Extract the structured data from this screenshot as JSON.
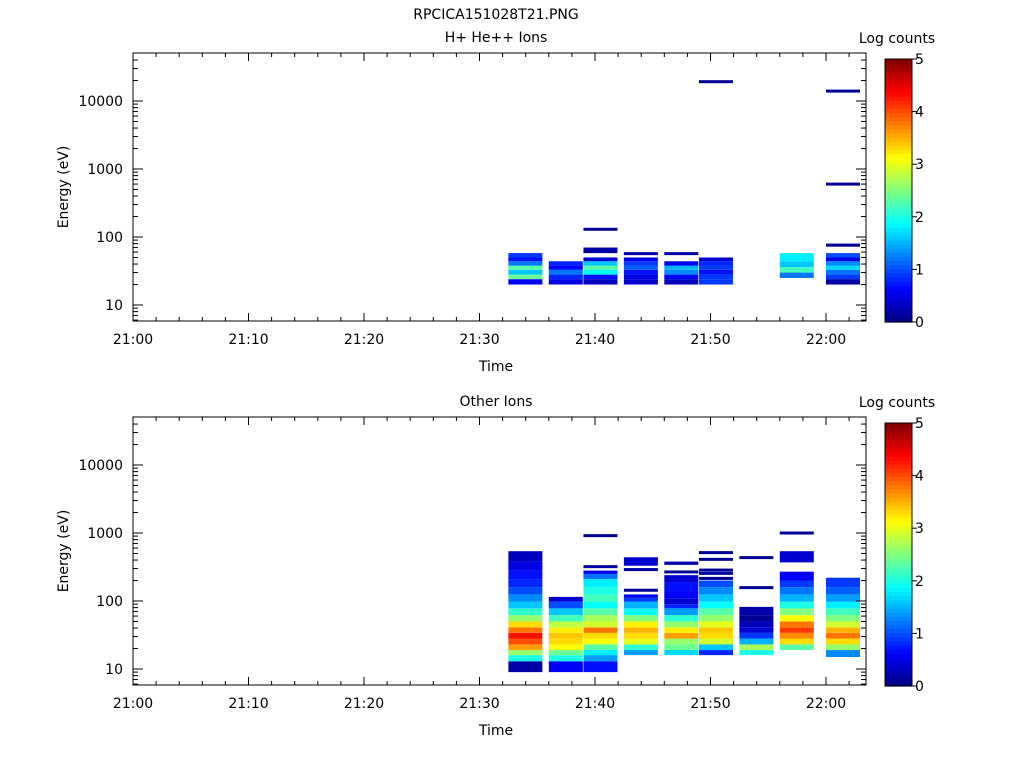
{
  "title": "RPCICA151028T21.PNG",
  "colorbar": {
    "label": "Log counts",
    "min": 0,
    "max": 5,
    "ticks": [
      "0",
      "1",
      "2",
      "3",
      "4",
      "5"
    ]
  },
  "chart_data": [
    {
      "type": "heatmap",
      "title": "H+ He++ Ions",
      "xlabel": "Time",
      "ylabel": "Energy (eV)",
      "x_ticks": [
        "21:00",
        "21:10",
        "21:20",
        "21:30",
        "21:40",
        "21:50",
        "22:00"
      ],
      "y_ticks": [
        "10",
        "100",
        "1000",
        "10000"
      ],
      "y_scale": "log",
      "ylim": [
        6,
        45000
      ],
      "xlim_minutes_from_2100": [
        0,
        63
      ],
      "columns": [
        {
          "time": "21:32.5",
          "cells": [
            [
              20,
              24,
              0.6
            ],
            [
              24,
              28,
              2.4
            ],
            [
              28,
              33,
              1.6
            ],
            [
              33,
              38,
              2.3
            ],
            [
              38,
              44,
              1.2
            ],
            [
              44,
              50,
              0.7
            ],
            [
              50,
              58,
              0.9
            ]
          ]
        },
        {
          "time": "21:36",
          "cells": [
            [
              20,
              24,
              0.5
            ],
            [
              24,
              28,
              0.8
            ],
            [
              28,
              33,
              1.2
            ],
            [
              33,
              38,
              0.6
            ],
            [
              38,
              44,
              0.8
            ]
          ]
        },
        {
          "time": "21:39",
          "cells": [
            [
              20,
              24,
              0.3
            ],
            [
              24,
              28,
              0.7
            ],
            [
              28,
              33,
              1.9
            ],
            [
              33,
              38,
              2.3
            ],
            [
              38,
              44,
              1.6
            ],
            [
              44,
              50,
              0.4
            ],
            [
              58,
              70,
              0.2
            ],
            [
              125,
              135,
              0.1
            ]
          ]
        },
        {
          "time": "21:42.5",
          "cells": [
            [
              20,
              24,
              0.4
            ],
            [
              24,
              28,
              0.5
            ],
            [
              28,
              33,
              0.7
            ],
            [
              33,
              38,
              1.1
            ],
            [
              38,
              44,
              0.9
            ],
            [
              44,
              50,
              0.5
            ],
            [
              55,
              59,
              0.2
            ]
          ]
        },
        {
          "time": "21:46",
          "cells": [
            [
              20,
              24,
              0.3
            ],
            [
              24,
              28,
              0.6
            ],
            [
              28,
              33,
              1.3
            ],
            [
              33,
              38,
              1.5
            ],
            [
              38,
              44,
              0.6
            ],
            [
              55,
              59,
              0.2
            ]
          ]
        },
        {
          "time": "21:49",
          "cells": [
            [
              20,
              24,
              0.9
            ],
            [
              24,
              28,
              0.9
            ],
            [
              28,
              33,
              0.7
            ],
            [
              33,
              38,
              0.9
            ],
            [
              38,
              44,
              0.8
            ],
            [
              44,
              50,
              0.4
            ],
            [
              18500,
              20000,
              0.1
            ]
          ]
        },
        {
          "time": "21:56",
          "cells": [
            [
              25,
              30,
              1.2
            ],
            [
              30,
              36,
              2.2
            ],
            [
              36,
              44,
              1.6
            ],
            [
              44,
              58,
              1.8
            ]
          ]
        },
        {
          "time": "22:00",
          "cells": [
            [
              20,
              24,
              0.2
            ],
            [
              24,
              28,
              0.9
            ],
            [
              28,
              33,
              1.2
            ],
            [
              33,
              38,
              1.7
            ],
            [
              38,
              44,
              1.3
            ],
            [
              44,
              50,
              0.5
            ],
            [
              50,
              58,
              1.0
            ],
            [
              72,
              80,
              0.1
            ],
            [
              580,
              620,
              0.1
            ],
            [
              13500,
              14500,
              0.1
            ]
          ]
        }
      ]
    },
    {
      "type": "heatmap",
      "title": "Other Ions",
      "xlabel": "Time",
      "ylabel": "Energy (eV)",
      "x_ticks": [
        "21:00",
        "21:10",
        "21:20",
        "21:30",
        "21:40",
        "21:50",
        "22:00"
      ],
      "y_ticks": [
        "10",
        "100",
        "1000",
        "10000"
      ],
      "y_scale": "log",
      "ylim": [
        6,
        45000
      ],
      "xlim_minutes_from_2100": [
        0,
        63
      ],
      "columns": [
        {
          "time": "21:32.5",
          "cells": [
            [
              9,
              13,
              0.2
            ],
            [
              13,
              16,
              2.0
            ],
            [
              16,
              19,
              2.6
            ],
            [
              19,
              23,
              3.6
            ],
            [
              23,
              28,
              4.0
            ],
            [
              28,
              34,
              4.3
            ],
            [
              34,
              41,
              3.8
            ],
            [
              41,
              50,
              3.3
            ],
            [
              50,
              62,
              2.6
            ],
            [
              62,
              78,
              2.1
            ],
            [
              78,
              98,
              1.6
            ],
            [
              98,
              125,
              1.3
            ],
            [
              125,
              160,
              1.0
            ],
            [
              160,
              210,
              0.8
            ],
            [
              210,
              280,
              0.7
            ],
            [
              280,
              380,
              0.5
            ],
            [
              380,
              540,
              0.3
            ]
          ]
        },
        {
          "time": "21:36",
          "cells": [
            [
              9,
              13,
              0.6
            ],
            [
              13,
              16,
              2.0
            ],
            [
              16,
              19,
              2.4
            ],
            [
              19,
              23,
              3.1
            ],
            [
              23,
              28,
              3.3
            ],
            [
              28,
              34,
              3.4
            ],
            [
              34,
              41,
              3.2
            ],
            [
              41,
              50,
              2.8
            ],
            [
              50,
              62,
              2.2
            ],
            [
              62,
              78,
              1.6
            ],
            [
              78,
              98,
              1.0
            ],
            [
              98,
              115,
              0.4
            ]
          ]
        },
        {
          "time": "21:39",
          "cells": [
            [
              9,
              13,
              0.7
            ],
            [
              13,
              16,
              1.4
            ],
            [
              16,
              19,
              1.8
            ],
            [
              19,
              23,
              2.3
            ],
            [
              23,
              28,
              3.1
            ],
            [
              28,
              34,
              3.3
            ],
            [
              34,
              41,
              3.8
            ],
            [
              41,
              50,
              2.9
            ],
            [
              50,
              62,
              2.7
            ],
            [
              62,
              78,
              2.3
            ],
            [
              78,
              98,
              1.9
            ],
            [
              98,
              125,
              2.2
            ],
            [
              125,
              160,
              2.0
            ],
            [
              160,
              210,
              1.8
            ],
            [
              210,
              250,
              1.2
            ],
            [
              250,
              280,
              0.6
            ],
            [
              310,
              330,
              0.2
            ],
            [
              880,
              950,
              0.1
            ]
          ]
        },
        {
          "time": "21:42.5",
          "cells": [
            [
              16,
              19,
              1.4
            ],
            [
              19,
              23,
              2.1
            ],
            [
              23,
              28,
              3.0
            ],
            [
              28,
              34,
              3.3
            ],
            [
              34,
              41,
              3.5
            ],
            [
              41,
              50,
              3.2
            ],
            [
              50,
              62,
              2.5
            ],
            [
              62,
              78,
              1.9
            ],
            [
              78,
              98,
              1.5
            ],
            [
              98,
              112,
              0.9
            ],
            [
              112,
              125,
              0.6
            ],
            [
              140,
              148,
              0.1
            ],
            [
              280,
              300,
              0.2
            ],
            [
              330,
              440,
              0.4
            ]
          ]
        },
        {
          "time": "21:46",
          "cells": [
            [
              16,
              19,
              1.7
            ],
            [
              19,
              23,
              2.4
            ],
            [
              23,
              28,
              2.6
            ],
            [
              28,
              34,
              3.6
            ],
            [
              34,
              41,
              3.2
            ],
            [
              41,
              50,
              2.6
            ],
            [
              50,
              62,
              2.1
            ],
            [
              62,
              78,
              1.4
            ],
            [
              78,
              90,
              0.8
            ],
            [
              90,
              110,
              0.4
            ],
            [
              110,
              140,
              0.6
            ],
            [
              140,
              190,
              0.7
            ],
            [
              190,
              240,
              0.4
            ],
            [
              260,
              275,
              0.1
            ],
            [
              340,
              380,
              0.2
            ]
          ]
        },
        {
          "time": "21:49",
          "cells": [
            [
              16,
              19,
              0.8
            ],
            [
              19,
              23,
              1.6
            ],
            [
              23,
              28,
              2.9
            ],
            [
              28,
              34,
              3.3
            ],
            [
              34,
              41,
              3.4
            ],
            [
              41,
              50,
              3.0
            ],
            [
              50,
              62,
              2.6
            ],
            [
              62,
              78,
              2.3
            ],
            [
              78,
              98,
              1.9
            ],
            [
              98,
              125,
              1.6
            ],
            [
              125,
              160,
              1.3
            ],
            [
              160,
              200,
              1.0
            ],
            [
              210,
              220,
              0.1
            ],
            [
              250,
              260,
              0.2
            ],
            [
              280,
              290,
              0.1
            ],
            [
              400,
              420,
              0.1
            ],
            [
              500,
              530,
              0.1
            ]
          ]
        },
        {
          "time": "21:52.5",
          "cells": [
            [
              16,
              19,
              2.0
            ],
            [
              19,
              23,
              2.7
            ],
            [
              23,
              28,
              1.5
            ],
            [
              28,
              34,
              0.9
            ],
            [
              34,
              41,
              0.4
            ],
            [
              41,
              50,
              0.3
            ],
            [
              50,
              62,
              0.1
            ],
            [
              62,
              82,
              0.2
            ],
            [
              150,
              165,
              0.1
            ],
            [
              420,
              450,
              0.1
            ]
          ]
        },
        {
          "time": "21:56",
          "cells": [
            [
              19,
              23,
              2.3
            ],
            [
              23,
              28,
              3.3
            ],
            [
              28,
              34,
              3.7
            ],
            [
              34,
              41,
              4.1
            ],
            [
              41,
              50,
              3.8
            ],
            [
              50,
              62,
              3.1
            ],
            [
              62,
              78,
              2.5
            ],
            [
              78,
              98,
              2.0
            ],
            [
              98,
              125,
              1.5
            ],
            [
              125,
              160,
              1.2
            ],
            [
              160,
              200,
              0.9
            ],
            [
              200,
              270,
              0.6
            ],
            [
              370,
              540,
              0.4
            ],
            [
              960,
              1040,
              0.1
            ]
          ]
        },
        {
          "time": "22:00",
          "cells": [
            [
              15,
              19,
              1.3
            ],
            [
              19,
              23,
              2.6
            ],
            [
              23,
              28,
              3.3
            ],
            [
              28,
              34,
              3.8
            ],
            [
              34,
              41,
              3.5
            ],
            [
              41,
              50,
              2.9
            ],
            [
              50,
              62,
              2.5
            ],
            [
              62,
              78,
              2.2
            ],
            [
              78,
              98,
              1.8
            ],
            [
              98,
              125,
              1.4
            ],
            [
              125,
              160,
              1.1
            ],
            [
              160,
              220,
              0.9
            ]
          ]
        }
      ]
    }
  ]
}
